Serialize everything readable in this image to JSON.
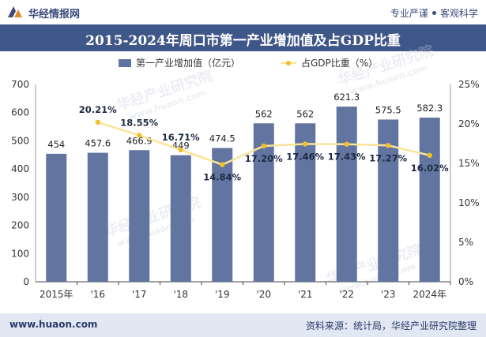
{
  "header": {
    "brand": "华经情报网",
    "tagline_left": "专业严谨",
    "tagline_right": "客观科学"
  },
  "title": "2015-2024年周口市第一产业增加值及占GDP比重",
  "footer": {
    "url": "www.huaon.com",
    "source": "资料来源：统计局，华经产业研究院整理"
  },
  "watermark": {
    "text": "华经产业研究院",
    "url": "www.huaon.com"
  },
  "colors": {
    "bar": "#6175a0",
    "line": "#fbe39a",
    "marker": "#f2bf2c",
    "title_bg": "#3f5788",
    "footer_bg": "#e2e8f3"
  },
  "chart_data": {
    "type": "bar",
    "categories": [
      "2015年",
      "'16",
      "'17",
      "'18",
      "'19",
      "'20",
      "'21",
      "'22",
      "'23",
      "2024年"
    ],
    "series": [
      {
        "name": "第一产业增加值（亿元）",
        "type": "bar",
        "axis": "left",
        "values": [
          454,
          457.6,
          466.9,
          449,
          474.5,
          562,
          562,
          621.3,
          575.5,
          582.3
        ],
        "labels": [
          "454",
          "457.6",
          "466.9",
          "449",
          "474.5",
          "562",
          "562",
          "621.3",
          "575.5",
          "582.3"
        ]
      },
      {
        "name": "占GDP比重（%）",
        "type": "line",
        "axis": "right",
        "values": [
          null,
          20.21,
          18.55,
          16.71,
          14.84,
          17.2,
          17.46,
          17.43,
          17.27,
          16.02
        ],
        "labels": [
          "",
          "20.21%",
          "18.55%",
          "16.71%",
          "14.84%",
          "17.20%",
          "17.46%",
          "17.43%",
          "17.27%",
          "16.02%"
        ]
      }
    ],
    "y_left": {
      "min": 0,
      "max": 700,
      "ticks": [
        "0",
        "100",
        "200",
        "300",
        "400",
        "500",
        "600",
        "700"
      ]
    },
    "y_right": {
      "min": 0,
      "max": 25,
      "ticks": [
        "0%",
        "5%",
        "10%",
        "15%",
        "20%",
        "25%"
      ]
    },
    "grid": false,
    "legend_position": "top-center"
  }
}
